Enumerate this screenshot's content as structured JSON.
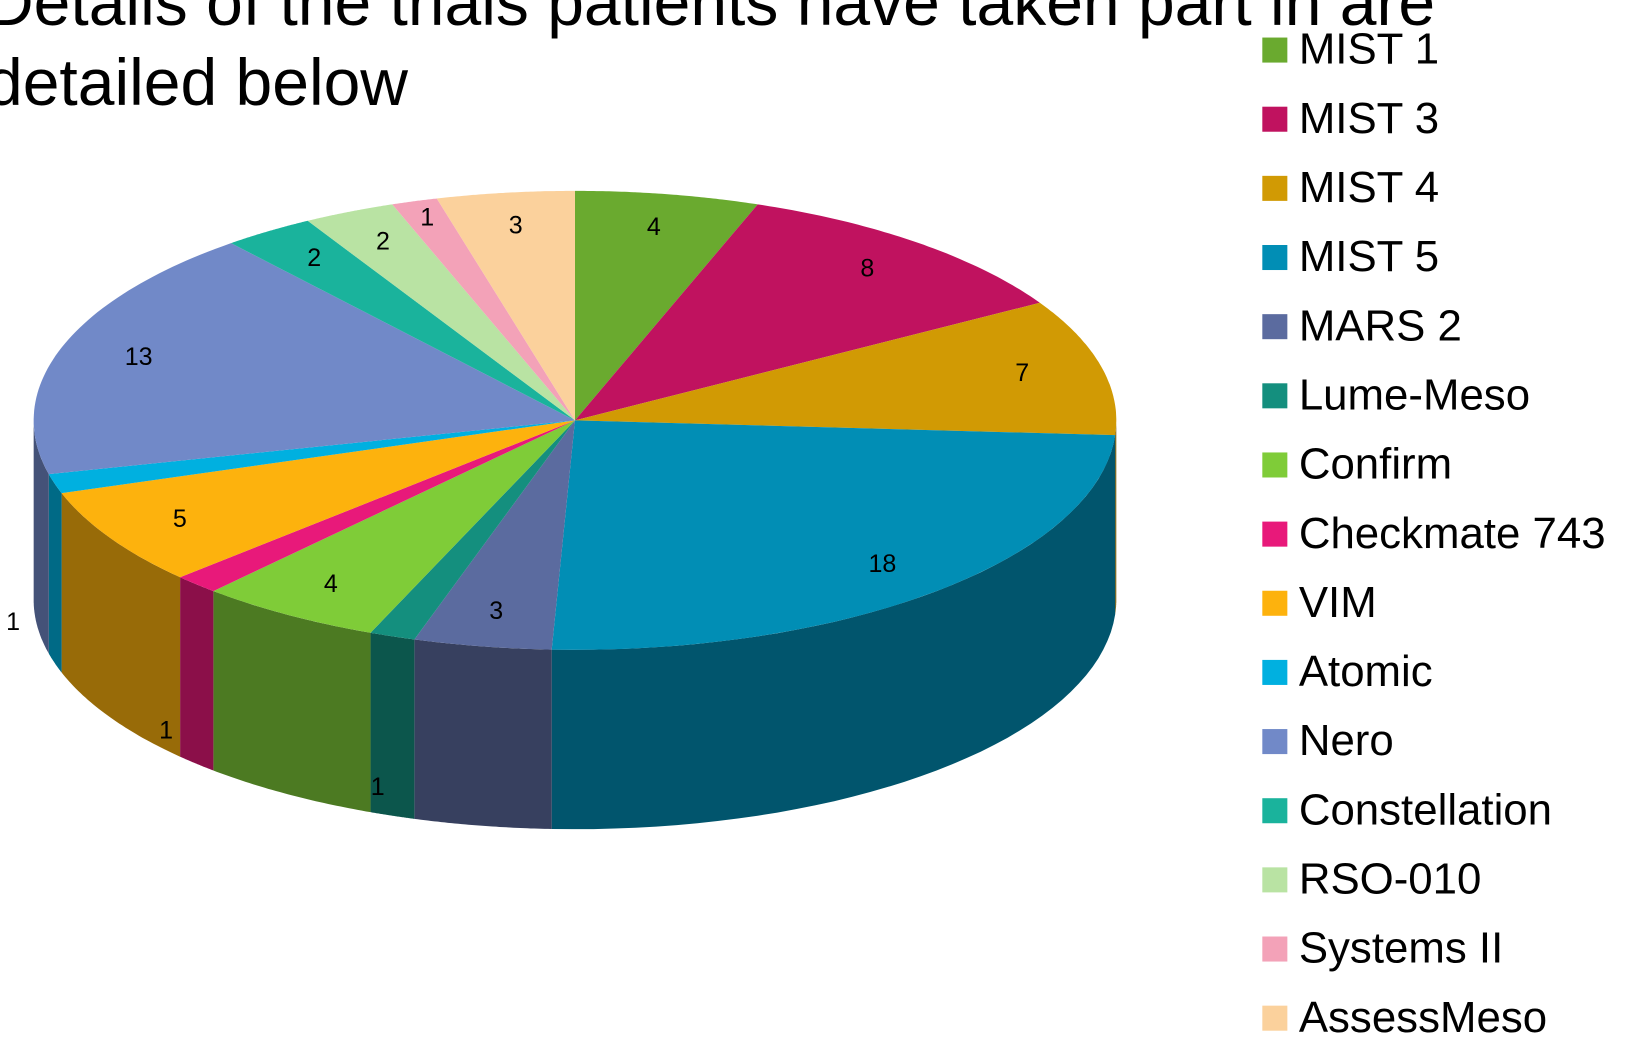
{
  "chart_data": {
    "type": "pie3d",
    "title": "Details of the trials patients have taken part in are detailed below",
    "categories": [
      "MIST 1",
      "MIST 3",
      "MIST 4",
      "MIST 5",
      "MARS 2",
      "Lume-Meso",
      "Confirm",
      "Checkmate 743",
      "VIM",
      "Atomic",
      "Nero",
      "Constellation",
      "RSO-010",
      "Systems II",
      "AssessMeso"
    ],
    "values": [
      4,
      8,
      7,
      18,
      3,
      1,
      4,
      1,
      5,
      1,
      13,
      2,
      2,
      1,
      3
    ],
    "colors": [
      "#6aaa2f",
      "#c0125f",
      "#d19a04",
      "#018eb5",
      "#5b6b9f",
      "#148f7e",
      "#7fcc38",
      "#e8197a",
      "#fdb20d",
      "#00b0e0",
      "#7189c8",
      "#1ab39c",
      "#b9e3a3",
      "#f3a2b8",
      "#fbd19c"
    ],
    "legend": "right"
  }
}
